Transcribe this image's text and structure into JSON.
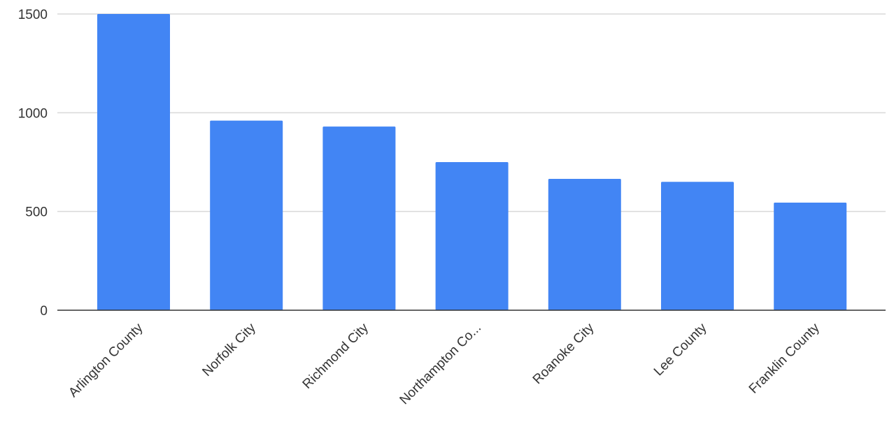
{
  "chart_data": {
    "type": "bar",
    "title": "",
    "xlabel": "",
    "ylabel": "",
    "categories": [
      "Arlington County",
      "Norfolk City",
      "Richmond City",
      "Northampton Co...",
      "Roanoke City",
      "Lee County",
      "Franklin County"
    ],
    "values": [
      1500,
      960,
      930,
      750,
      665,
      650,
      545
    ],
    "ylim": [
      0,
      1500
    ],
    "yticks": [
      0,
      500,
      1000,
      1500
    ],
    "grid": true,
    "legend": "none",
    "colors": {
      "bar": "#4285F4",
      "gridline": "#d9d9d9",
      "axis": "#333333"
    }
  }
}
